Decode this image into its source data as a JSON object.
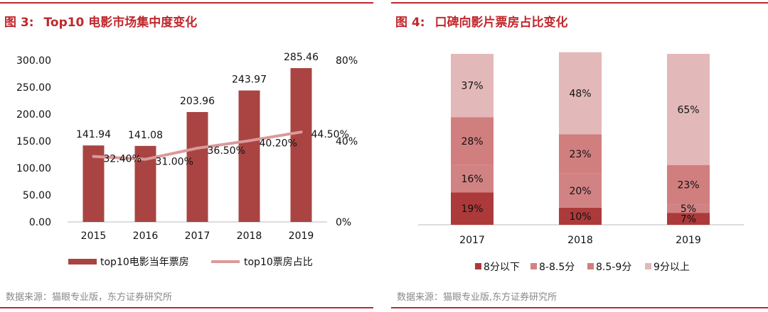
{
  "colors": {
    "accent": "#c0282d",
    "bar": "#a94442",
    "share_line": "#d99a99",
    "cat_lt8": "#ad3a3b",
    "cat_8_85": "#d18384",
    "cat_85_9": "#d17e7f",
    "cat_9plus": "#e3b8b8",
    "source_text": "#888888"
  },
  "left": {
    "title_num": "图 3:",
    "title_text": "Top10 电影市场集中度变化",
    "source": "数据来源：猫眼专业版，东方证券研究所"
  },
  "right": {
    "title_num": "图 4:",
    "title_text": "口碑向影片票房占比变化",
    "source": "数据来源：猫眼专业版,东方证券研究所"
  },
  "chart_data": [
    {
      "type": "bar",
      "title": "Top10 电影市场集中度变化",
      "categories": [
        "2015",
        "2016",
        "2017",
        "2018",
        "2019"
      ],
      "series": [
        {
          "name": "top10电影当年票房",
          "kind": "bar",
          "axis": "left",
          "values": [
            141.94,
            141.08,
            203.96,
            243.97,
            285.46
          ],
          "labels": [
            "141.94",
            "141.08",
            "203.96",
            "243.97",
            "285.46"
          ]
        },
        {
          "name": "top10票房占比",
          "kind": "line",
          "axis": "right",
          "values": [
            32.4,
            31.0,
            36.5,
            40.2,
            44.5
          ],
          "labels": [
            "32.40%",
            "31.00%",
            "36.50%",
            "40.20%",
            "44.50%"
          ]
        }
      ],
      "ylim": [
        0,
        300
      ],
      "yticks": [
        "0.00",
        "50.00",
        "100.00",
        "150.00",
        "200.00",
        "250.00",
        "300.00"
      ],
      "y2lim": [
        0,
        80
      ],
      "y2ticks": [
        "0%",
        "40%",
        "80%"
      ],
      "legend_position": "bottom"
    },
    {
      "type": "bar",
      "stacked": true,
      "title": "口碑向影片票房占比变化",
      "categories": [
        "2017",
        "2018",
        "2019"
      ],
      "series": [
        {
          "name": "8分以下",
          "values": [
            19,
            10,
            7
          ],
          "labels": [
            "19%",
            "10%",
            "7%"
          ]
        },
        {
          "name": "8-8.5分",
          "values": [
            16,
            20,
            5
          ],
          "labels": [
            "16%",
            "20%",
            "5%"
          ]
        },
        {
          "name": "8.5-9分",
          "values": [
            28,
            23,
            23
          ],
          "labels": [
            "28%",
            "23%",
            "23%"
          ]
        },
        {
          "name": "9分以上",
          "values": [
            37,
            48,
            65
          ],
          "labels": [
            "37%",
            "48%",
            "65%"
          ]
        }
      ],
      "ylim": [
        0,
        100
      ],
      "legend_position": "bottom"
    }
  ]
}
